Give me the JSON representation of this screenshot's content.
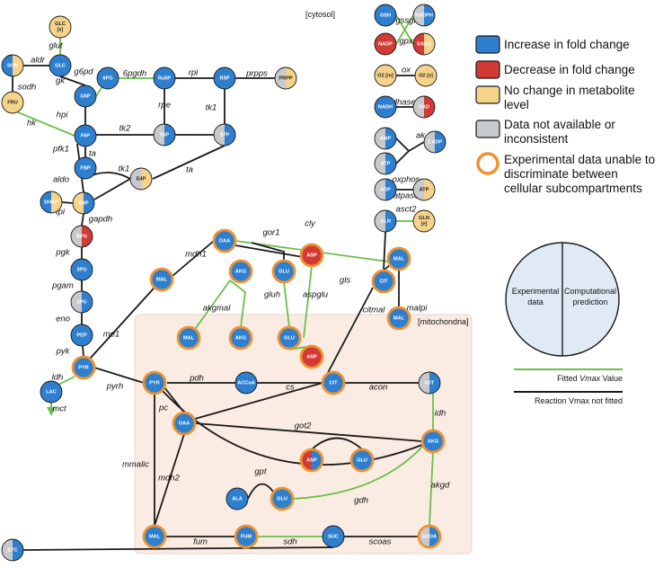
{
  "compartments": {
    "cytosol": "[cytosol]",
    "mitochondria": "[mitochondria]"
  },
  "colors": {
    "increase": "#2f7fcf",
    "decrease": "#d13a35",
    "nochange": "#f6d38a",
    "na": "#c7c9cc",
    "ring": "#f0922f",
    "fitted": "#6abf4b",
    "notfitted": "#1a1a1a",
    "mito_bg": "#fbece3",
    "prediction_bg": "#dfeaf5"
  },
  "legend": {
    "increase": "Increase in fold change",
    "decrease": "Decrease in fold change",
    "nochange_1": "No change in metabolite",
    "nochange_2": "level",
    "na_1": "Data not available or",
    "na_2": "inconsistent",
    "ring_1": "Experimental data unable to",
    "ring_2": "discriminate between",
    "ring_3": "cellular subcompartments",
    "experimental_1": "Experimental",
    "experimental_2": "data",
    "prediction_1": "Computational",
    "prediction_2": "prediction",
    "fitted_pre": "Fitted ",
    "fitted_vmax": "Vmax",
    "fitted_post": " Value",
    "notfitted": "Reaction Vmax not fitted"
  },
  "nodes": [
    {
      "id": "glc_e",
      "label": "GLC\n[e]",
      "left": "nochange",
      "right": "nochange",
      "ring": false
    },
    {
      "id": "sor",
      "label": "SOR",
      "left": "increase",
      "right": "nochange",
      "ring": false
    },
    {
      "id": "glc",
      "label": "GLC",
      "left": "increase",
      "right": "increase",
      "ring": false
    },
    {
      "id": "fru",
      "label": "FRU",
      "left": "nochange",
      "right": "nochange",
      "ring": false
    },
    {
      "id": "g6p",
      "label": "G6P",
      "left": "increase",
      "right": "increase",
      "ring": false
    },
    {
      "id": "6pg",
      "label": "6PG",
      "left": "increase",
      "right": "increase",
      "ring": false
    },
    {
      "id": "ru5p",
      "label": "Ru5P",
      "left": "increase",
      "right": "increase",
      "ring": false
    },
    {
      "id": "r5p",
      "label": "R5P",
      "left": "increase",
      "right": "increase",
      "ring": false
    },
    {
      "id": "prpp",
      "label": "PRPP",
      "left": "na",
      "right": "nochange",
      "ring": false
    },
    {
      "id": "x5p",
      "label": "X5P",
      "left": "na",
      "right": "increase",
      "ring": false
    },
    {
      "id": "s7p",
      "label": "S7P",
      "left": "na",
      "right": "increase",
      "ring": false
    },
    {
      "id": "f6p",
      "label": "F6P",
      "left": "increase",
      "right": "increase",
      "ring": false
    },
    {
      "id": "fbp",
      "label": "FBP",
      "left": "increase",
      "right": "increase",
      "ring": false
    },
    {
      "id": "e4p",
      "label": "E4P",
      "left": "na",
      "right": "nochange",
      "ring": false
    },
    {
      "id": "dhap",
      "label": "DHAP",
      "left": "increase",
      "right": "nochange",
      "ring": false
    },
    {
      "id": "g3p",
      "label": "G3P",
      "left": "nochange",
      "right": "increase",
      "ring": false
    },
    {
      "id": "bpg",
      "label": "BPG",
      "left": "na",
      "right": "decrease",
      "ring": false
    },
    {
      "id": "3pg",
      "label": "3PG",
      "left": "increase",
      "right": "increase",
      "ring": false
    },
    {
      "id": "2pg",
      "label": "2PG",
      "left": "na",
      "right": "increase",
      "ring": false
    },
    {
      "id": "pep",
      "label": "PEP",
      "left": "increase",
      "right": "increase",
      "ring": false
    },
    {
      "id": "pyr_c",
      "label": "PYR",
      "left": "increase",
      "right": "increase",
      "ring": true
    },
    {
      "id": "lac",
      "label": "LAC",
      "left": "increase",
      "right": "increase",
      "ring": false
    },
    {
      "id": "gsh",
      "label": "GSH",
      "left": "increase",
      "right": "increase",
      "ring": false
    },
    {
      "id": "nadph",
      "label": "NADPH",
      "left": "na",
      "right": "increase",
      "ring": false
    },
    {
      "id": "nadp",
      "label": "NADP",
      "left": "decrease",
      "right": "decrease",
      "ring": false
    },
    {
      "id": "gssg",
      "label": "GSSG",
      "left": "decrease",
      "right": "nochange",
      "ring": false
    },
    {
      "id": "o2_in",
      "label": "O2 [in]",
      "left": "nochange",
      "right": "nochange",
      "ring": false
    },
    {
      "id": "o2_e",
      "label": "O2 [e]",
      "left": "nochange",
      "right": "nochange",
      "ring": false
    },
    {
      "id": "nadh",
      "label": "NADH",
      "left": "increase",
      "right": "increase",
      "ring": false
    },
    {
      "id": "nad",
      "label": "NAD",
      "left": "na",
      "right": "decrease",
      "ring": false
    },
    {
      "id": "amp",
      "label": "AMP",
      "left": "na",
      "right": "increase",
      "ring": false
    },
    {
      "id": "2adp",
      "label": "2 ADP",
      "left": "na",
      "right": "increase",
      "ring": false
    },
    {
      "id": "atp1",
      "label": "ATP",
      "left": "na",
      "right": "increase",
      "ring": false
    },
    {
      "id": "adp",
      "label": "ADP",
      "left": "na",
      "right": "increase",
      "ring": false
    },
    {
      "id": "atp2",
      "label": "ATP",
      "left": "na",
      "right": "nochange",
      "ring": false
    },
    {
      "id": "gln",
      "label": "GLN",
      "left": "na",
      "right": "increase",
      "ring": false
    },
    {
      "id": "gln_e",
      "label": "GLN\n[e]",
      "left": "nochange",
      "right": "nochange",
      "ring": false
    },
    {
      "id": "oaa_c",
      "label": "OAA",
      "left": "increase",
      "right": "increase",
      "ring": true
    },
    {
      "id": "asp_c",
      "label": "ASP",
      "left": "decrease",
      "right": "decrease",
      "ring": true
    },
    {
      "id": "mal_c",
      "label": "MAL",
      "left": "increase",
      "right": "increase",
      "ring": true
    },
    {
      "id": "akg_c",
      "label": "AKG",
      "left": "increase",
      "right": "increase",
      "ring": true
    },
    {
      "id": "glu_c",
      "label": "GLU",
      "left": "increase",
      "right": "increase",
      "ring": true
    },
    {
      "id": "mal_c2",
      "label": "MAL",
      "left": "increase",
      "right": "increase",
      "ring": true
    },
    {
      "id": "cit_c",
      "label": "CIT",
      "left": "increase",
      "right": "increase",
      "ring": true
    },
    {
      "id": "mal_m1",
      "label": "MAL",
      "left": "increase",
      "right": "increase",
      "ring": true
    },
    {
      "id": "akg_m1",
      "label": "AKG",
      "left": "increase",
      "right": "increase",
      "ring": true
    },
    {
      "id": "glu_m1",
      "label": "GLU",
      "left": "increase",
      "right": "increase",
      "ring": true
    },
    {
      "id": "asp_m1",
      "label": "ASP",
      "left": "decrease",
      "right": "decrease",
      "ring": true
    },
    {
      "id": "mal_m2",
      "label": "MAL",
      "left": "increase",
      "right": "increase",
      "ring": true
    },
    {
      "id": "pyr_m",
      "label": "PYR",
      "left": "increase",
      "right": "increase",
      "ring": true
    },
    {
      "id": "accoa",
      "label": "ACCoA",
      "left": "increase",
      "right": "increase",
      "ring": false
    },
    {
      "id": "cit_m",
      "label": "CIT",
      "left": "increase",
      "right": "increase",
      "ring": true
    },
    {
      "id": "icit",
      "label": "ICIT",
      "left": "na",
      "right": "increase",
      "ring": false
    },
    {
      "id": "oaa_m",
      "label": "OAA",
      "left": "increase",
      "right": "increase",
      "ring": true
    },
    {
      "id": "asp_m2",
      "label": "ASP",
      "left": "decrease",
      "right": "increase",
      "ring": true
    },
    {
      "id": "glu_m2",
      "label": "GLU",
      "left": "increase",
      "right": "increase",
      "ring": true
    },
    {
      "id": "akg_m2",
      "label": "AKG",
      "left": "increase",
      "right": "increase",
      "ring": true
    },
    {
      "id": "ala",
      "label": "ALA",
      "left": "increase",
      "right": "increase",
      "ring": false
    },
    {
      "id": "glu_m3",
      "label": "GLU",
      "left": "increase",
      "right": "increase",
      "ring": true
    },
    {
      "id": "mal_m3",
      "label": "MAL",
      "left": "increase",
      "right": "increase",
      "ring": true
    },
    {
      "id": "fum",
      "label": "FUM",
      "left": "increase",
      "right": "increase",
      "ring": true
    },
    {
      "id": "suc",
      "label": "SUC",
      "left": "increase",
      "right": "increase",
      "ring": false
    },
    {
      "id": "scoa",
      "label": "SCOA",
      "left": "na",
      "right": "increase",
      "ring": true
    },
    {
      "id": "etc",
      "label": "ETC",
      "left": "na",
      "right": "increase",
      "ring": false
    }
  ],
  "reactions": [
    {
      "id": "glut",
      "label": "glut"
    },
    {
      "id": "aldr",
      "label": "aldr"
    },
    {
      "id": "sodh",
      "label": "sodh"
    },
    {
      "id": "gk",
      "label": "gk"
    },
    {
      "id": "g6pd",
      "label": "g6pd"
    },
    {
      "id": "6pgdh",
      "label": "6pgdh"
    },
    {
      "id": "rpi",
      "label": "rpi"
    },
    {
      "id": "prpps",
      "label": "prpps"
    },
    {
      "id": "rpe",
      "label": "rpe"
    },
    {
      "id": "tk1a",
      "label": "tk1"
    },
    {
      "id": "hpi",
      "label": "hpi"
    },
    {
      "id": "hk",
      "label": "hk"
    },
    {
      "id": "tk2",
      "label": "tk2"
    },
    {
      "id": "pfk1",
      "label": "pfk1"
    },
    {
      "id": "ta1",
      "label": "ta"
    },
    {
      "id": "aldo",
      "label": "aldo"
    },
    {
      "id": "tk1b",
      "label": "tk1"
    },
    {
      "id": "ta2",
      "label": "ta"
    },
    {
      "id": "tpi",
      "label": "tpi"
    },
    {
      "id": "gapdh",
      "label": "gapdh"
    },
    {
      "id": "pgk",
      "label": "pgk"
    },
    {
      "id": "pgam",
      "label": "pgam"
    },
    {
      "id": "eno",
      "label": "eno"
    },
    {
      "id": "pyk",
      "label": "pyk"
    },
    {
      "id": "ldh",
      "label": "ldh"
    },
    {
      "id": "mct",
      "label": "mct"
    },
    {
      "id": "gssgr",
      "label": "gssgr"
    },
    {
      "id": "gpx",
      "label": "gpx"
    },
    {
      "id": "ox",
      "label": "ox"
    },
    {
      "id": "dhases",
      "label": "dhases"
    },
    {
      "id": "ak",
      "label": "ak"
    },
    {
      "id": "oxphos",
      "label": "oxphos"
    },
    {
      "id": "atpase",
      "label": "atpase"
    },
    {
      "id": "asct2",
      "label": "asct2"
    },
    {
      "id": "cly",
      "label": "cly"
    },
    {
      "id": "gor1",
      "label": "gor1"
    },
    {
      "id": "mdh1",
      "label": "mdh1"
    },
    {
      "id": "gluh",
      "label": "gluh"
    },
    {
      "id": "aspglu",
      "label": "aspglu"
    },
    {
      "id": "gls",
      "label": "gls"
    },
    {
      "id": "akgmal",
      "label": "akgmal"
    },
    {
      "id": "citmal",
      "label": "citmal"
    },
    {
      "id": "malpi",
      "label": "malpi"
    },
    {
      "id": "me1",
      "label": "me1"
    },
    {
      "id": "pyrh",
      "label": "pyrh"
    },
    {
      "id": "pdh",
      "label": "pdh"
    },
    {
      "id": "cs",
      "label": "cs"
    },
    {
      "id": "acon",
      "label": "acon"
    },
    {
      "id": "pc",
      "label": "pc"
    },
    {
      "id": "idh",
      "label": "idh"
    },
    {
      "id": "got2",
      "label": "got2"
    },
    {
      "id": "mmalic",
      "label": "mmalic"
    },
    {
      "id": "mdh2",
      "label": "mdh2"
    },
    {
      "id": "gpt",
      "label": "gpt"
    },
    {
      "id": "gdh",
      "label": "gdh"
    },
    {
      "id": "akgd",
      "label": "akgd"
    },
    {
      "id": "fum",
      "label": "fum"
    },
    {
      "id": "sdh",
      "label": "sdh"
    },
    {
      "id": "scoas",
      "label": "scoas"
    }
  ]
}
